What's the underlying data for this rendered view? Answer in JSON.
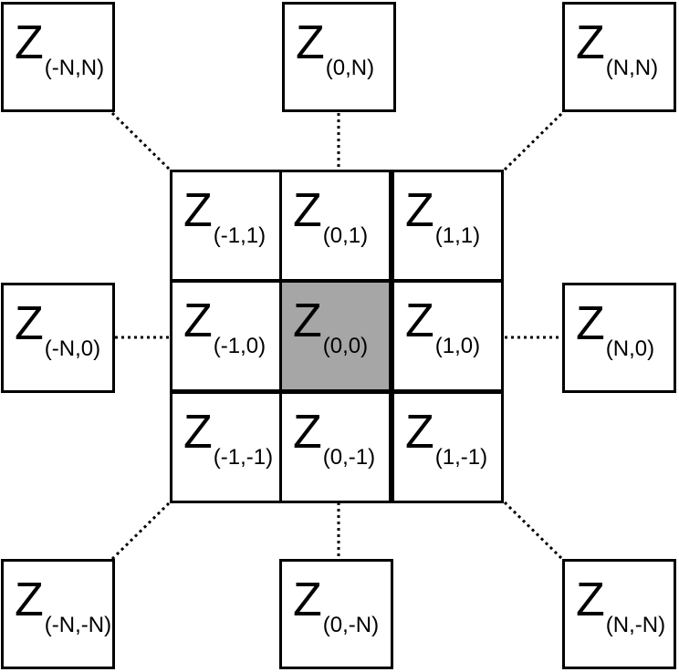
{
  "cells": [
    {
      "id": "-N,N",
      "symbol": "Z",
      "subscript": "(-N,N)",
      "shaded": false
    },
    {
      "id": "0,N",
      "symbol": "Z",
      "subscript": "(0,N)",
      "shaded": false
    },
    {
      "id": "N,N",
      "symbol": "Z",
      "subscript": "(N,N)",
      "shaded": false
    },
    {
      "id": "-1,1",
      "symbol": "Z",
      "subscript": "(-1,1)",
      "shaded": false
    },
    {
      "id": "0,1",
      "symbol": "Z",
      "subscript": "(0,1)",
      "shaded": false
    },
    {
      "id": "1,1",
      "symbol": "Z",
      "subscript": "(1,1)",
      "shaded": false
    },
    {
      "id": "-N,0",
      "symbol": "Z",
      "subscript": "(-N,0)",
      "shaded": false
    },
    {
      "id": "-1,0",
      "symbol": "Z",
      "subscript": "(-1,0)",
      "shaded": false
    },
    {
      "id": "0,0",
      "symbol": "Z",
      "subscript": "(0,0)",
      "shaded": true
    },
    {
      "id": "1,0",
      "symbol": "Z",
      "subscript": "(1,0)",
      "shaded": false
    },
    {
      "id": "N,0",
      "symbol": "Z",
      "subscript": "(N,0)",
      "shaded": false
    },
    {
      "id": "-1,-1",
      "symbol": "Z",
      "subscript": "(-1,-1)",
      "shaded": false
    },
    {
      "id": "0,-1",
      "symbol": "Z",
      "subscript": "(0,-1)",
      "shaded": false
    },
    {
      "id": "1,-1",
      "symbol": "Z",
      "subscript": "(1,-1)",
      "shaded": false
    },
    {
      "id": "-N,-N",
      "symbol": "Z",
      "subscript": "(-N,-N)",
      "shaded": false
    },
    {
      "id": "0,-N",
      "symbol": "Z",
      "subscript": "(0,-N)",
      "shaded": false
    },
    {
      "id": "N,-N",
      "symbol": "Z",
      "subscript": "(N,-N)",
      "shaded": false
    }
  ],
  "colors": {
    "shaded_fill": "#a6a6a6",
    "line": "#000000",
    "background": "#ffffff"
  }
}
